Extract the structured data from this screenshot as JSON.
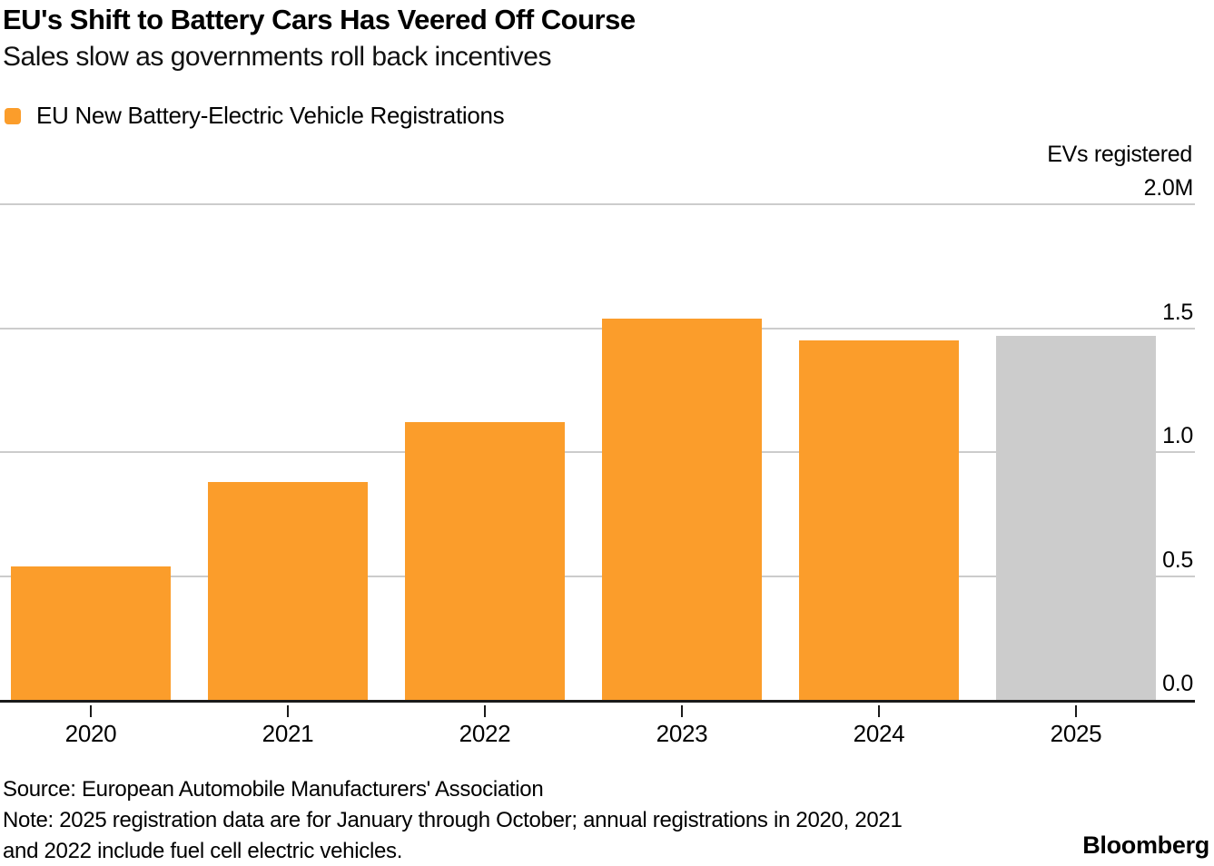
{
  "header": {
    "title": "EU's Shift to Battery Cars Has Veered Off Course",
    "subtitle": "Sales slow as governments roll back incentives"
  },
  "legend": {
    "label": "EU New Battery-Electric Vehicle Registrations",
    "swatch_color": "#FB9D2B"
  },
  "axis": {
    "unit_label": "EVs registered"
  },
  "chart_data": {
    "type": "bar",
    "title": "EU New Battery-Electric Vehicle Registrations",
    "categories": [
      "2020",
      "2021",
      "2022",
      "2023",
      "2024",
      "2025"
    ],
    "values": [
      0.54,
      0.88,
      1.12,
      1.54,
      1.45,
      1.47
    ],
    "unit": "millions",
    "ylabel": "EVs registered",
    "ylim": [
      0,
      2.0
    ],
    "y_ticks": [
      {
        "label": "2.0M",
        "value": 2.0
      },
      {
        "label": "1.5",
        "value": 1.5
      },
      {
        "label": "1.0",
        "value": 1.0
      },
      {
        "label": "0.5",
        "value": 0.5
      },
      {
        "label": "0.0",
        "value": 0.0
      }
    ],
    "bar_colors": [
      "#FB9D2B",
      "#FB9D2B",
      "#FB9D2B",
      "#FB9D2B",
      "#FB9D2B",
      "#CCCCCC"
    ],
    "grid": "horizontal",
    "legend_position": "top-left"
  },
  "footer": {
    "source": "Source: European Automobile Manufacturers' Association",
    "note_lines": [
      "Note: 2025 registration data are for January through October; annual registrations in 2020, 2021",
      "and 2022 include fuel cell electric vehicles."
    ],
    "brand": "Bloomberg"
  },
  "colors": {
    "bar_orange": "#FB9D2B",
    "bar_gray": "#CCCCCC",
    "gridline": "#CCCCCC",
    "axis_line": "#1A1A1A",
    "text": "#000000"
  }
}
